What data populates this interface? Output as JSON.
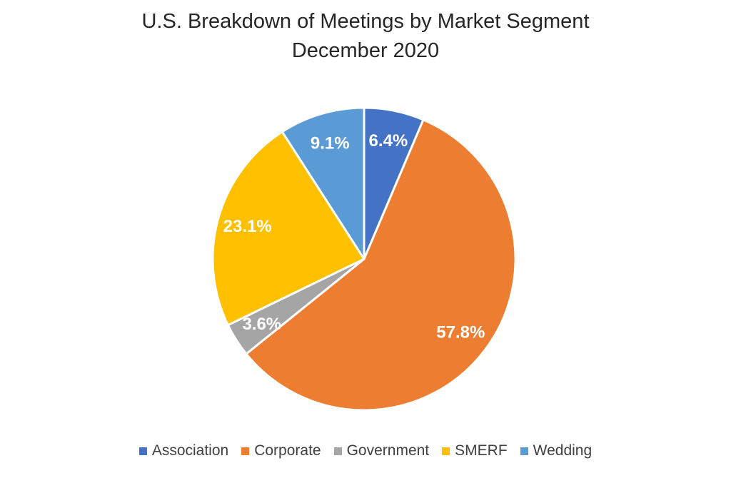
{
  "chart_data": {
    "type": "pie",
    "title": "U.S. Breakdown of Meetings by Market Segment",
    "subtitle": "December 2020",
    "categories": [
      "Association",
      "Corporate",
      "Government",
      "SMERF",
      "Wedding"
    ],
    "values": [
      6.4,
      57.8,
      3.6,
      23.1,
      9.1
    ],
    "labels": [
      "6.4%",
      "57.8%",
      "3.6%",
      "23.1%",
      "9.1%"
    ],
    "colors": [
      "#4472C4",
      "#ED7D31",
      "#A5A5A5",
      "#FFC000",
      "#5B9BD5"
    ],
    "start_angle_deg": 0,
    "direction": "clockwise",
    "legend_position": "bottom",
    "legend_marker": "square",
    "slice_border_color": "#FFFFFF",
    "data_label_color": "#FFFFFF",
    "title_color": "#262626",
    "legend_text_color": "#404040",
    "background_color": "#FFFFFF"
  }
}
